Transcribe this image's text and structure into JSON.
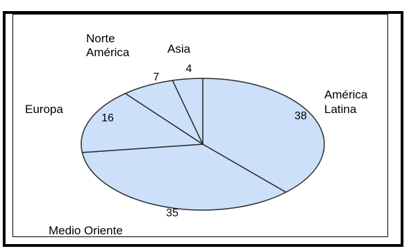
{
  "chart_data": {
    "type": "pie",
    "title": "",
    "categories": [
      "América Latina",
      "Medio Oriente",
      "Europa",
      "Norte América",
      "Asia"
    ],
    "values": [
      38,
      35,
      16,
      7,
      4
    ],
    "category_labels": [
      [
        "América",
        "Latina"
      ],
      [
        "Medio Oriente"
      ],
      [
        "Europa"
      ],
      [
        "Norte",
        "América"
      ],
      [
        "Asia"
      ]
    ],
    "value_labels": [
      "38",
      "35",
      "16",
      "7",
      "4"
    ],
    "start_angle_deg": 0,
    "direction": "clockwise",
    "legend": "none",
    "colors": {
      "slice_fill": "#cde0fa",
      "slice_stroke": "#2b2b2b"
    }
  }
}
